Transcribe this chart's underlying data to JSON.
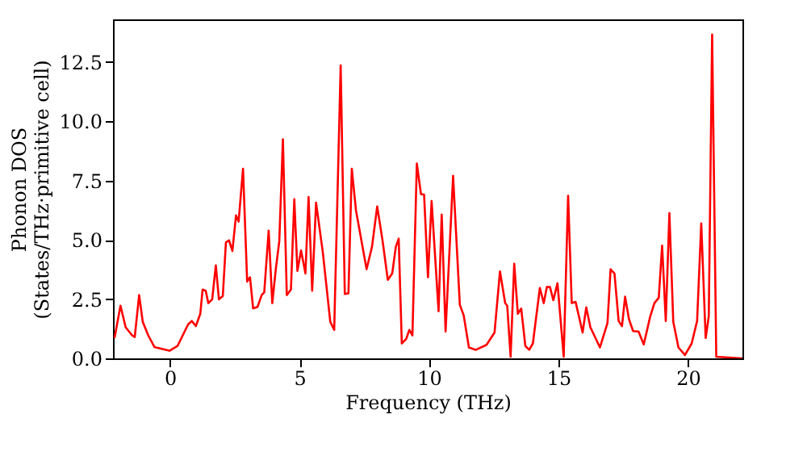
{
  "chart_data": {
    "type": "line",
    "xlabel": "Frequency (THz)",
    "ylabel": "Phonon DOS\n(States/THz·primitive cell)",
    "xlim": [
      -2.2,
      22.1
    ],
    "ylim": [
      0,
      14.3
    ],
    "xticks": [
      0,
      5,
      10,
      15,
      20
    ],
    "yticks": [
      {
        "value": 0,
        "label": "0.0"
      },
      {
        "value": 2.5,
        "label": "2.5"
      },
      {
        "value": 5,
        "label": "5.0"
      },
      {
        "value": 7.5,
        "label": "7.5"
      },
      {
        "value": 10,
        "label": "10.0"
      },
      {
        "value": 12.5,
        "label": "12.5"
      }
    ],
    "grid": false,
    "line_style": "solid",
    "marker": "none",
    "x": [
      -2.14,
      -1.91,
      -1.71,
      -1.46,
      -1.36,
      -1.19,
      -1.05,
      -0.84,
      -0.6,
      -0.02,
      0.29,
      0.7,
      0.84,
      1.0,
      1.17,
      1.26,
      1.38,
      1.48,
      1.63,
      1.77,
      1.89,
      2.04,
      2.16,
      2.28,
      2.41,
      2.55,
      2.65,
      2.82,
      2.98,
      3.09,
      3.21,
      3.38,
      3.54,
      3.64,
      3.81,
      3.95,
      4.09,
      4.22,
      4.36,
      4.51,
      4.67,
      4.8,
      4.92,
      5.06,
      5.23,
      5.35,
      5.49,
      5.64,
      5.9,
      6.19,
      6.34,
      6.59,
      6.75,
      6.89,
      7.02,
      7.18,
      7.59,
      7.8,
      8.0,
      8.21,
      8.41,
      8.58,
      8.72,
      8.83,
      8.95,
      9.12,
      9.24,
      9.36,
      9.53,
      9.69,
      9.81,
      9.96,
      10.1,
      10.37,
      10.49,
      10.64,
      10.93,
      11.19,
      11.34,
      11.54,
      11.81,
      12.22,
      12.53,
      12.74,
      12.94,
      13.02,
      13.15,
      13.29,
      13.43,
      13.56,
      13.72,
      13.87,
      14.01,
      14.28,
      14.43,
      14.55,
      14.67,
      14.8,
      14.96,
      15.2,
      15.37,
      15.51,
      15.66,
      15.93,
      16.07,
      16.23,
      16.6,
      16.89,
      17.01,
      17.16,
      17.32,
      17.45,
      17.57,
      17.72,
      17.88,
      18.09,
      18.29,
      18.54,
      18.7,
      18.87,
      19.0,
      19.14,
      19.28,
      19.43,
      19.63,
      19.88,
      20.14,
      20.35,
      20.51,
      20.68,
      20.8,
      20.93,
      21.09,
      22.1
    ],
    "series": [
      {
        "color": "#ff0000",
        "values": [
          0.86,
          2.22,
          1.31,
          0.97,
          0.9,
          2.67,
          1.54,
          0.97,
          0.48,
          0.32,
          0.52,
          1.43,
          1.58,
          1.36,
          1.88,
          2.9,
          2.85,
          2.33,
          2.49,
          3.92,
          2.49,
          2.63,
          4.89,
          4.98,
          4.53,
          6.03,
          5.77,
          8.0,
          3.24,
          3.42,
          2.11,
          2.17,
          2.67,
          2.79,
          5.39,
          2.33,
          3.8,
          4.94,
          9.24,
          2.67,
          2.9,
          6.71,
          3.69,
          4.55,
          3.58,
          6.81,
          2.85,
          6.57,
          4.48,
          1.54,
          1.2,
          12.36,
          2.72,
          2.74,
          8.0,
          6.25,
          3.76,
          4.71,
          6.41,
          4.94,
          3.31,
          3.58,
          4.71,
          5.05,
          0.63,
          0.82,
          1.2,
          0.97,
          8.22,
          6.93,
          6.91,
          3.42,
          6.64,
          1.99,
          6.07,
          1.13,
          7.7,
          2.26,
          1.81,
          0.46,
          0.36,
          0.57,
          1.09,
          3.67,
          2.33,
          2.22,
          0.07,
          3.99,
          1.88,
          2.1,
          0.52,
          0.36,
          0.63,
          2.97,
          2.33,
          3.01,
          3.01,
          2.45,
          3.17,
          0.07,
          6.86,
          2.33,
          2.38,
          1.09,
          2.15,
          1.31,
          0.46,
          1.49,
          3.76,
          3.58,
          1.58,
          1.36,
          2.6,
          1.65,
          1.15,
          1.13,
          0.59,
          1.77,
          2.33,
          2.56,
          4.76,
          1.58,
          6.13,
          1.54,
          0.46,
          0.14,
          0.63,
          1.58,
          5.69,
          0.86,
          1.77,
          13.66,
          0.07,
          0.0
        ]
      }
    ]
  }
}
